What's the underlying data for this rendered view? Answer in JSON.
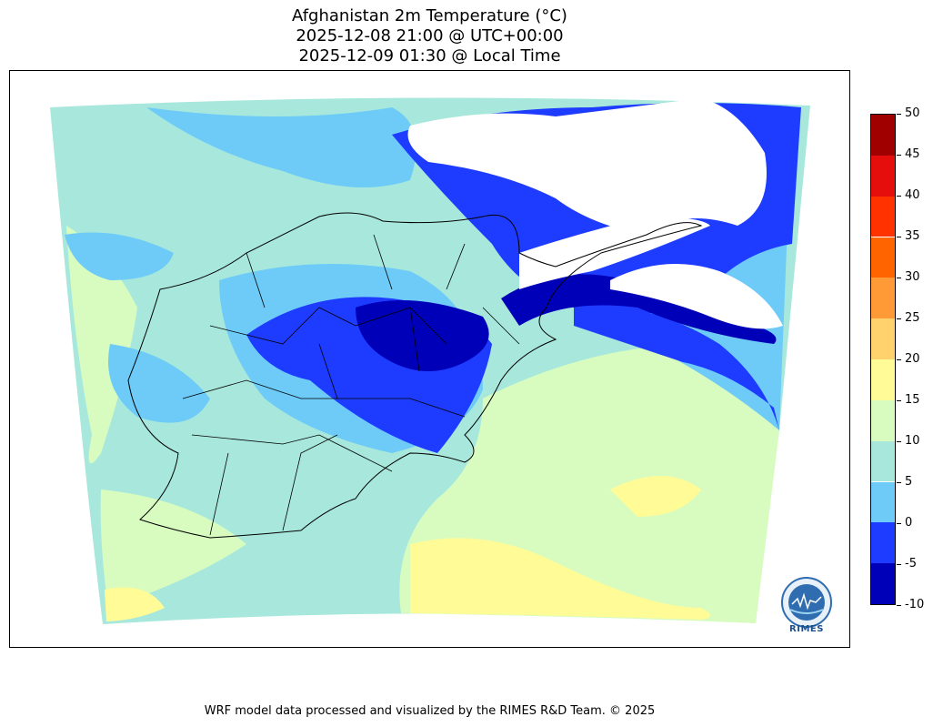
{
  "map": {
    "title_line1": "Afghanistan 2m Temperature (°C)",
    "title_line2": "2025-12-08 21:00 @ UTC+00:00",
    "title_line3": "2025-12-09 01:30 @ Local Time",
    "footer": "WRF model data processed and visualized by the RIMES R&D Team. © 2025",
    "logo_text": "RIMES"
  },
  "legend": {
    "unit": "°C",
    "ticks": [
      "-10",
      "-5",
      "0",
      "5",
      "10",
      "15",
      "20",
      "25",
      "30",
      "35",
      "40",
      "45",
      "50"
    ],
    "bins": [
      {
        "range": "-10 to -5",
        "color": "#0000b8"
      },
      {
        "range": "-5 to 0",
        "color": "#1e3cff"
      },
      {
        "range": "0 to 5",
        "color": "#6ecbf8"
      },
      {
        "range": "5 to 10",
        "color": "#a8e8dc"
      },
      {
        "range": "10 to 15",
        "color": "#d8fcc0"
      },
      {
        "range": "15 to 20",
        "color": "#fffb96"
      },
      {
        "range": "20 to 25",
        "color": "#ffd26e"
      },
      {
        "range": "25 to 30",
        "color": "#ff9a37"
      },
      {
        "range": "30 to 35",
        "color": "#ff6400"
      },
      {
        "range": "35 to 40",
        "color": "#ff3200"
      },
      {
        "range": "40 to 45",
        "color": "#e60d0d"
      },
      {
        "range": "45 to 50",
        "color": "#a00000"
      }
    ]
  }
}
